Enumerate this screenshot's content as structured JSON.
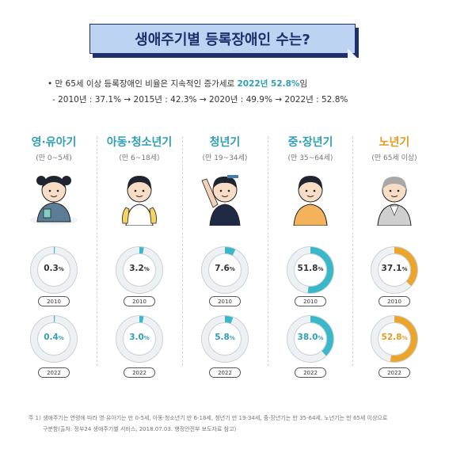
{
  "title": "생애주기별 등록장애인 수는?",
  "summary": {
    "bullet": "•",
    "line1_pre": "만 65세 이상 등록장애인 비율은 지속적인 증가세로 ",
    "line1_highlight": "2022년 52.8%",
    "line1_post": "임",
    "line2": "- 2010년 : 37.1% → 2015년 : 42.3% → 2020년 : 49.9% → 2022년 : 52.8%"
  },
  "colors": {
    "teal": "#3ab7c9",
    "orange": "#eba42c",
    "ring_track": "#d9dde2",
    "ring_outer": "#c9d0d8",
    "navy": "#1e2f6b"
  },
  "chart_data": {
    "type": "donut",
    "years": [
      "2010",
      "2022"
    ],
    "unit": "%",
    "stages": [
      {
        "name": "영·유아기",
        "age": "(만 0~5세)",
        "color": "#2e9fb6",
        "values": [
          0.3,
          0.4
        ],
        "labels": [
          "0.3",
          "0.4"
        ],
        "label_colors": [
          "#333333",
          "#2e9fb6"
        ]
      },
      {
        "name": "아동·청소년기",
        "age": "(만 6~18세)",
        "color": "#2e9fb6",
        "values": [
          3.2,
          3.0
        ],
        "labels": [
          "3.2",
          "3.0"
        ],
        "label_colors": [
          "#333333",
          "#2e9fb6"
        ]
      },
      {
        "name": "청년기",
        "age": "(만 19~34세)",
        "color": "#2e9fb6",
        "values": [
          7.6,
          5.8
        ],
        "labels": [
          "7.6",
          "5.8"
        ],
        "label_colors": [
          "#333333",
          "#2e9fb6"
        ]
      },
      {
        "name": "중·장년기",
        "age": "(만 35~64세)",
        "color": "#2e9fb6",
        "values": [
          51.8,
          38.0
        ],
        "labels": [
          "51.8",
          "38.0"
        ],
        "label_colors": [
          "#333333",
          "#2e9fb6"
        ]
      },
      {
        "name": "노년기",
        "age": "(만 65세 이상)",
        "color": "#e59a1c",
        "values": [
          37.1,
          52.8
        ],
        "labels": [
          "37.1",
          "52.8"
        ],
        "label_colors": [
          "#333333",
          "#e59a1c"
        ]
      }
    ]
  },
  "notes": {
    "line1": "주   1) 생애주기는 연령에 따라 영·유아기는 만 0-5세, 아동·청소년기 만 6-18세, 청년기 만 19-34세, 중·장년기는 만 35-64세, 노년기는 만 65세 이상으로",
    "line2": "구분함(출처: 정부24 생애주기별 서비스, 2018.07.03. 행정안전부 보도자료 참고)"
  }
}
